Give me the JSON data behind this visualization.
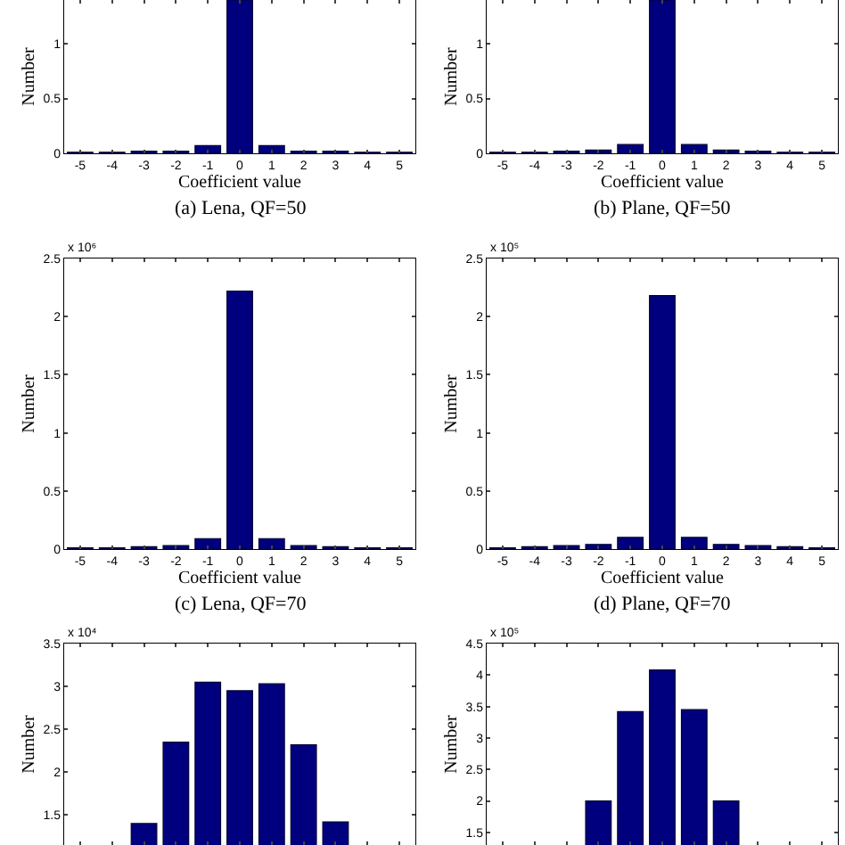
{
  "chart_data": [
    {
      "type": "bar",
      "title": "(a) Lena, QF=50",
      "xlabel": "Coefficient value",
      "ylabel": "Number",
      "categories": [
        "-5",
        "-4",
        "-3",
        "-2",
        "-1",
        "0",
        "1",
        "2",
        "3",
        "4",
        "5"
      ],
      "series": [
        {
          "color": "#00007f",
          "values": [
            0.01,
            0.01,
            0.02,
            0.02,
            0.07,
            1.4,
            0.07,
            0.02,
            0.02,
            0.01,
            0.01
          ]
        }
      ],
      "ylim": [
        0,
        1.4
      ],
      "yticks": [
        0,
        0.5,
        1
      ],
      "grid": false
    },
    {
      "type": "bar",
      "title": "(b) Plane, QF=50",
      "xlabel": "Coefficient value",
      "ylabel": "Number",
      "categories": [
        "-5",
        "-4",
        "-3",
        "-2",
        "-1",
        "0",
        "1",
        "2",
        "3",
        "4",
        "5"
      ],
      "series": [
        {
          "color": "#00007f",
          "values": [
            0.01,
            0.01,
            0.02,
            0.03,
            0.08,
            1.4,
            0.08,
            0.03,
            0.02,
            0.01,
            0.01
          ]
        }
      ],
      "ylim": [
        0,
        1.4
      ],
      "yticks": [
        0,
        0.5,
        1
      ],
      "grid": false
    },
    {
      "type": "bar",
      "title": "(c) Lena, QF=70",
      "xlabel": "Coefficient value",
      "ylabel": "Number",
      "annotations": [
        "x 10⁶"
      ],
      "categories": [
        "-5",
        "-4",
        "-3",
        "-2",
        "-1",
        "0",
        "1",
        "2",
        "3",
        "4",
        "5"
      ],
      "series": [
        {
          "color": "#00007f",
          "values": [
            0.01,
            0.01,
            0.02,
            0.03,
            0.09,
            2.22,
            0.09,
            0.03,
            0.02,
            0.01,
            0.01
          ]
        }
      ],
      "ylim": [
        0,
        2.5
      ],
      "yticks": [
        0,
        0.5,
        1,
        1.5,
        2,
        2.5
      ],
      "grid": false
    },
    {
      "type": "bar",
      "title": "(d) Plane, QF=70",
      "xlabel": "Coefficient value",
      "ylabel": "Number",
      "annotations": [
        "x 10⁵"
      ],
      "categories": [
        "-5",
        "-4",
        "-3",
        "-2",
        "-1",
        "0",
        "1",
        "2",
        "3",
        "4",
        "5"
      ],
      "series": [
        {
          "color": "#00007f",
          "values": [
            0.01,
            0.02,
            0.03,
            0.04,
            0.1,
            2.18,
            0.1,
            0.04,
            0.03,
            0.02,
            0.01
          ]
        }
      ],
      "ylim": [
        0,
        2.5
      ],
      "yticks": [
        0,
        0.5,
        1,
        1.5,
        2,
        2.5
      ],
      "grid": false
    },
    {
      "type": "bar",
      "ylabel": "Number",
      "annotations": [
        "x 10⁴"
      ],
      "categories": [
        "-5",
        "-4",
        "-3",
        "-2",
        "-1",
        "0",
        "1",
        "2",
        "3",
        "4",
        "5"
      ],
      "series": [
        {
          "color": "#00007f",
          "values": [
            null,
            null,
            1.4,
            2.35,
            3.05,
            2.95,
            3.03,
            2.32,
            1.42,
            null,
            null
          ]
        }
      ],
      "ylim": [
        1.15,
        3.5
      ],
      "yticks": [
        1.5,
        2,
        2.5,
        3,
        3.5
      ],
      "grid": false,
      "tick_labels": "y"
    },
    {
      "type": "bar",
      "ylabel": "Number",
      "annotations": [
        "x 10⁵"
      ],
      "categories": [
        "-5",
        "-4",
        "-3",
        "-2",
        "-1",
        "0",
        "1",
        "2",
        "3",
        "4",
        "5"
      ],
      "series": [
        {
          "color": "#00007f",
          "values": [
            null,
            null,
            null,
            2.0,
            3.42,
            4.08,
            3.45,
            2.0,
            null,
            null,
            null
          ]
        }
      ],
      "ylim": [
        1.3,
        4.5
      ],
      "yticks": [
        1.5,
        2,
        2.5,
        3,
        3.5,
        4,
        4.5
      ],
      "grid": false,
      "tick_labels": "y"
    }
  ]
}
